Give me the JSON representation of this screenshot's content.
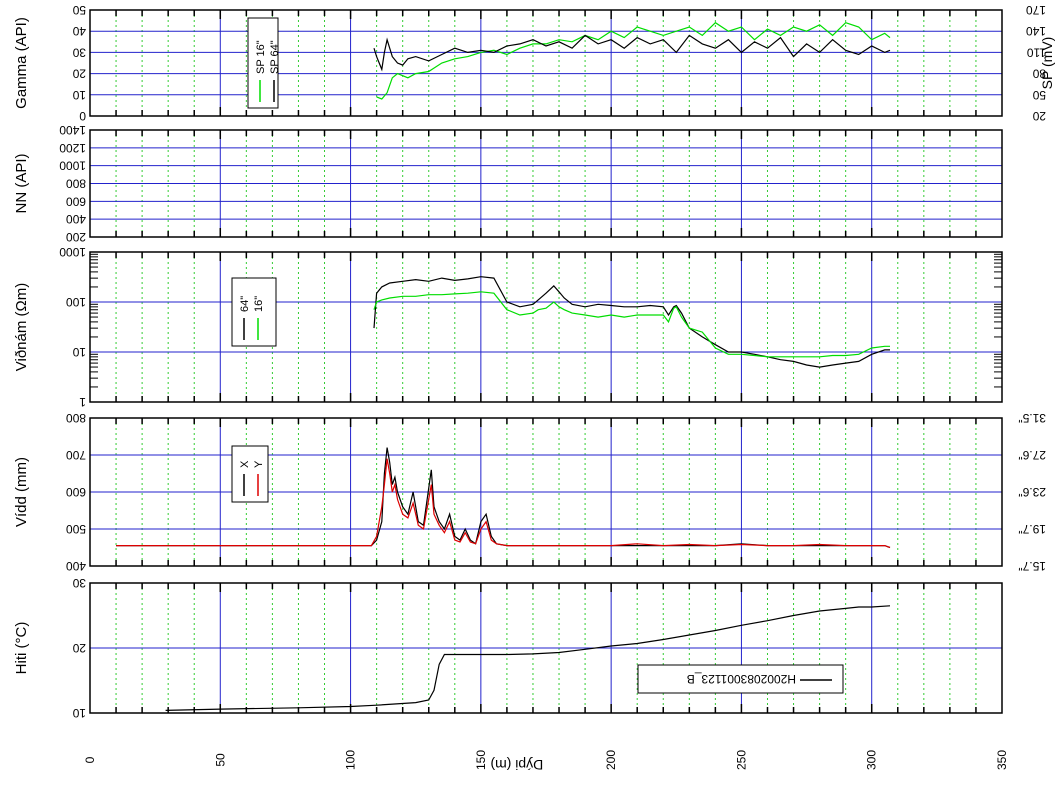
{
  "chart_data": [
    {
      "type": "line",
      "panel": "gamma",
      "ylabel": "Gamma (API)",
      "ylim": [
        0,
        50
      ],
      "yticks": [
        "0",
        "10",
        "20",
        "30",
        "40",
        "50"
      ],
      "right_label": "SP (mV)",
      "right_ticks": [
        "20",
        "50",
        "80",
        "110",
        "140",
        "170"
      ],
      "legend": [
        "SP 16\"",
        "SP 64\""
      ],
      "grid": true,
      "series": [
        {
          "name": "SP 16\"",
          "color": "#00dd00",
          "x": [
            110,
            112,
            114,
            116,
            118,
            122,
            125,
            130,
            135,
            140,
            145,
            150,
            155,
            160,
            165,
            170,
            175,
            180,
            185,
            190,
            195,
            200,
            205,
            210,
            215,
            220,
            225,
            230,
            235,
            240,
            245,
            250,
            255,
            260,
            265,
            270,
            275,
            280,
            285,
            290,
            295,
            300,
            305,
            307
          ],
          "y": [
            9,
            8,
            11,
            18,
            20,
            18,
            20,
            21,
            25,
            27,
            28,
            30,
            31,
            29,
            32,
            34,
            34,
            36,
            35,
            38,
            36,
            40,
            37,
            42,
            40,
            38,
            40,
            42,
            38,
            44,
            40,
            42,
            36,
            41,
            38,
            42,
            40,
            43,
            38,
            44,
            42,
            36,
            39,
            37
          ]
        },
        {
          "name": "SP 64\"",
          "color": "#000000",
          "x": [
            109,
            110,
            111,
            112,
            113,
            114,
            116,
            118,
            120,
            122,
            125,
            130,
            135,
            140,
            145,
            150,
            155,
            160,
            165,
            170,
            175,
            180,
            185,
            190,
            195,
            200,
            205,
            210,
            215,
            220,
            225,
            230,
            235,
            240,
            245,
            250,
            255,
            260,
            265,
            270,
            275,
            280,
            285,
            290,
            295,
            300,
            305,
            307
          ],
          "y": [
            32,
            28,
            25,
            22,
            30,
            36,
            28,
            25,
            24,
            27,
            28,
            26,
            29,
            32,
            30,
            31,
            30,
            33,
            34,
            36,
            33,
            35,
            32,
            38,
            34,
            36,
            32,
            37,
            34,
            36,
            30,
            38,
            34,
            32,
            36,
            30,
            35,
            32,
            37,
            28,
            34,
            30,
            36,
            31,
            29,
            33,
            30,
            31
          ]
        }
      ]
    },
    {
      "type": "line",
      "panel": "nn",
      "ylabel": "NN (API)",
      "ylim": [
        200,
        1400
      ],
      "yticks": [
        "200",
        "400",
        "600",
        "800",
        "1000",
        "1200",
        "1400"
      ],
      "grid": true,
      "series": []
    },
    {
      "type": "line",
      "panel": "resistivity",
      "ylabel": "Viðnám (Ωm)",
      "ylim": [
        1,
        1000
      ],
      "yscale": "log",
      "yticks": [
        "1",
        "10",
        "100",
        "1000"
      ],
      "legend": [
        "64\"",
        "16\""
      ],
      "grid": true,
      "series": [
        {
          "name": "64\"",
          "color": "#000000",
          "x": [
            109,
            110,
            112,
            115,
            120,
            125,
            130,
            135,
            140,
            145,
            150,
            155,
            160,
            165,
            170,
            172,
            175,
            178,
            180,
            182,
            185,
            190,
            195,
            200,
            205,
            210,
            215,
            220,
            222,
            224,
            225,
            227,
            230,
            235,
            240,
            245,
            250,
            255,
            260,
            265,
            270,
            275,
            280,
            285,
            290,
            295,
            300,
            305,
            307
          ],
          "y": [
            30,
            150,
            200,
            240,
            260,
            280,
            260,
            300,
            270,
            290,
            320,
            300,
            100,
            80,
            90,
            110,
            150,
            210,
            160,
            120,
            90,
            80,
            90,
            85,
            80,
            80,
            85,
            80,
            55,
            80,
            85,
            60,
            30,
            20,
            14,
            10,
            10,
            9,
            8,
            7,
            6.5,
            5.5,
            5,
            5.5,
            6,
            6.5,
            9,
            11,
            11
          ]
        },
        {
          "name": "16\"",
          "color": "#00dd00",
          "x": [
            109,
            110,
            112,
            115,
            120,
            125,
            130,
            135,
            140,
            145,
            150,
            155,
            160,
            165,
            170,
            172,
            175,
            178,
            180,
            182,
            185,
            190,
            195,
            200,
            205,
            210,
            215,
            220,
            222,
            224,
            225,
            227,
            230,
            235,
            240,
            245,
            250,
            255,
            260,
            265,
            270,
            275,
            280,
            285,
            290,
            295,
            300,
            305,
            307
          ],
          "y": [
            70,
            100,
            110,
            120,
            130,
            130,
            140,
            140,
            145,
            150,
            160,
            150,
            70,
            55,
            60,
            70,
            75,
            100,
            80,
            70,
            60,
            55,
            50,
            55,
            50,
            55,
            55,
            55,
            40,
            75,
            80,
            50,
            30,
            25,
            12,
            9,
            9,
            8.5,
            8,
            8,
            8,
            8,
            8,
            8.5,
            8.5,
            9,
            12,
            13,
            13
          ]
        }
      ]
    },
    {
      "type": "line",
      "panel": "caliper",
      "ylabel": "Vídd (mm)",
      "ylim": [
        400,
        800
      ],
      "yticks": [
        "400",
        "500",
        "600",
        "700",
        "800"
      ],
      "right_ticks": [
        "15.7\"",
        "19.7\"",
        "23.6\"",
        "27.6\"",
        "31.5\""
      ],
      "legend": [
        "X",
        "Y"
      ],
      "grid": true,
      "series": [
        {
          "name": "X",
          "color": "#000000",
          "x": [
            10,
            50,
            100,
            108,
            110,
            112,
            113,
            114,
            115,
            116,
            117,
            118,
            120,
            122,
            124,
            126,
            128,
            130,
            131,
            132,
            134,
            136,
            138,
            140,
            142,
            144,
            146,
            148,
            150,
            152,
            154,
            156,
            160,
            170,
            180,
            190,
            200,
            210,
            220,
            230,
            240,
            250,
            260,
            270,
            280,
            290,
            300,
            305,
            307
          ],
          "y": [
            455,
            455,
            455,
            455,
            470,
            520,
            650,
            720,
            680,
            620,
            640,
            600,
            560,
            540,
            600,
            520,
            510,
            610,
            660,
            560,
            520,
            500,
            540,
            480,
            470,
            500,
            470,
            460,
            520,
            540,
            480,
            460,
            455,
            455,
            455,
            455,
            455,
            455,
            455,
            455,
            455,
            460,
            455,
            455,
            455,
            455,
            455,
            455,
            450
          ]
        },
        {
          "name": "Y",
          "color": "#dd0000",
          "x": [
            10,
            50,
            100,
            108,
            110,
            112,
            113,
            114,
            115,
            116,
            117,
            118,
            120,
            122,
            124,
            126,
            128,
            130,
            131,
            132,
            134,
            136,
            138,
            140,
            142,
            144,
            146,
            148,
            150,
            152,
            154,
            156,
            160,
            170,
            180,
            190,
            200,
            210,
            220,
            230,
            240,
            250,
            260,
            270,
            280,
            290,
            300,
            305,
            307
          ],
          "y": [
            455,
            455,
            455,
            455,
            480,
            560,
            620,
            690,
            650,
            600,
            620,
            580,
            540,
            530,
            570,
            510,
            500,
            580,
            620,
            540,
            510,
            490,
            520,
            470,
            465,
            490,
            465,
            460,
            500,
            520,
            470,
            460,
            455,
            455,
            455,
            455,
            455,
            460,
            455,
            458,
            455,
            458,
            455,
            455,
            458,
            455,
            455,
            455,
            450
          ]
        }
      ]
    },
    {
      "type": "line",
      "panel": "temperature",
      "ylabel": "Hiti (°C)",
      "ylim": [
        10,
        30
      ],
      "yticks": [
        "10",
        "20",
        "30"
      ],
      "xlabel": "Dýpi (m)",
      "xlim": [
        0,
        350
      ],
      "xticks": [
        "0",
        "50",
        "100",
        "150",
        "200",
        "250",
        "300",
        "350"
      ],
      "legend": [
        "H2002083001123_B"
      ],
      "grid": true,
      "series": [
        {
          "name": "H2002083001123_B",
          "color": "#000000",
          "x": [
            29,
            50,
            80,
            100,
            110,
            125,
            130,
            132,
            134,
            136,
            140,
            150,
            160,
            170,
            180,
            190,
            200,
            210,
            220,
            230,
            240,
            250,
            260,
            270,
            280,
            290,
            295,
            300,
            307
          ],
          "y": [
            10.4,
            10.6,
            10.8,
            11,
            11.2,
            11.6,
            12,
            13.5,
            17.5,
            19,
            19,
            19,
            19,
            19.1,
            19.3,
            19.8,
            20.3,
            20.7,
            21.3,
            22,
            22.7,
            23.5,
            24.2,
            25,
            25.7,
            26.1,
            26.3,
            26.3,
            26.5
          ]
        }
      ]
    }
  ]
}
